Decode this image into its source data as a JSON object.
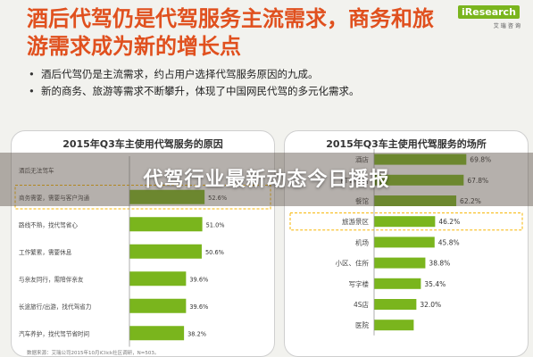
{
  "slide": {
    "title": "酒后代驾仍是代驾服务主流需求，商务和旅游需求成为新的增长点",
    "bullets": [
      "酒后代驾仍是主流需求，约占用户选择代驾服务原因的九成。",
      "新的商务、旅游等需求不断攀升，体现了中国网民代驾的多元化需求。"
    ],
    "source": "数据来源：艾瑞公司2015年10月iClick社区调研，N=503。"
  },
  "logo": {
    "text": "iResearch",
    "subtext": "艾 瑞 咨 询"
  },
  "overlay": {
    "headline": "代驾行业最新动态今日播报"
  },
  "colors": {
    "bar": "#7ab51d",
    "title": "#e0501e",
    "highlight": "#f7b500"
  },
  "chart_data": [
    {
      "type": "bar",
      "orientation": "horizontal",
      "title": "2015年Q3车主使用代驾服务的原因",
      "categories": [
        "酒后无法驾车",
        "商务需要，需要与客户沟通",
        "路线不熟，找代驾省心",
        "工作繁累，需要休息",
        "与亲友同行，需陪伴亲友",
        "长途旅行/出游，找代驾省力",
        "汽车养护，找代驾节省时间"
      ],
      "values": [
        null,
        52.6,
        51.0,
        50.6,
        39.6,
        39.6,
        38.2
      ],
      "labels": [
        "",
        "52.6%",
        "51.0%",
        "50.6%",
        "39.6%",
        "39.6%",
        "38.2%"
      ],
      "highlighted_category": "商务需要，需要与客户沟通",
      "xlim": [
        0,
        100
      ]
    },
    {
      "type": "bar",
      "orientation": "horizontal",
      "title": "2015年Q3车主使用代驾服务的场所",
      "categories": [
        "酒店",
        "KTV/夜店",
        "餐馆",
        "旅游景区",
        "机场",
        "小区、住所",
        "写字楼",
        "4S店",
        "医院"
      ],
      "values": [
        69.8,
        67.8,
        62.2,
        46.2,
        45.8,
        38.8,
        35.4,
        32.0,
        30.0
      ],
      "labels": [
        "69.8%",
        "67.8%",
        "62.2%",
        "46.2%",
        "45.8%",
        "38.8%",
        "35.4%",
        "32.0%",
        ""
      ],
      "highlighted_category": "旅游景区",
      "xlim": [
        0,
        100
      ]
    }
  ]
}
